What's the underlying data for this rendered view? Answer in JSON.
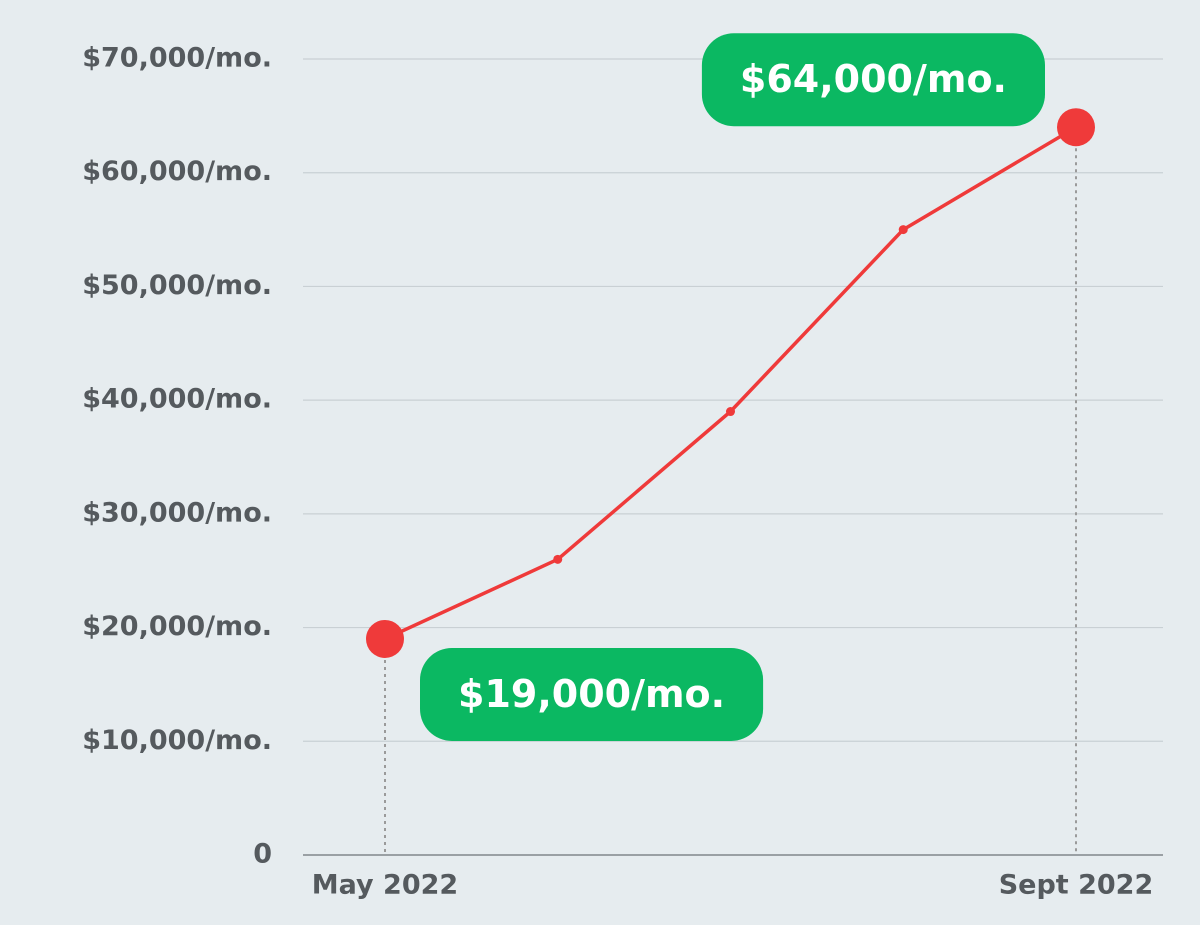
{
  "chart_data": {
    "type": "line",
    "categories": [
      "May 2022",
      null,
      null,
      null,
      "Sept 2022"
    ],
    "values": [
      19000,
      26000,
      39000,
      55000,
      64000
    ],
    "value_labels": [
      "$19,000/mo.",
      null,
      null,
      null,
      "$64,000/mo."
    ],
    "color": "#ef3a3a",
    "label_color": "#0bb862",
    "ylim": [
      0,
      70000
    ],
    "yticks": [
      0,
      {
        "value": 10000,
        "label": "$10,000/mo."
      },
      {
        "value": 20000,
        "label": "$20,000/mo."
      },
      {
        "value": 30000,
        "label": "$30,000/mo."
      },
      {
        "value": 40000,
        "label": "$40,000/mo."
      },
      {
        "value": 50000,
        "label": "$50,000/mo."
      },
      {
        "value": 60000,
        "label": "$60,000/mo."
      },
      {
        "value": 70000,
        "label": "$70,000/mo."
      }
    ],
    "grid": true
  }
}
